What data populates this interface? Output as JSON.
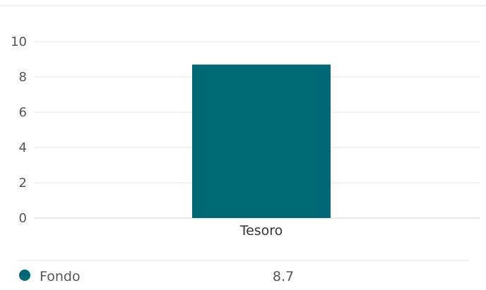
{
  "chart_data": {
    "type": "bar",
    "categories": [
      "Tesoro"
    ],
    "series": [
      {
        "name": "Fondo",
        "values": [
          8.7
        ],
        "color": "#006775"
      }
    ],
    "ylim": [
      0,
      10
    ],
    "yticks": [
      0,
      2,
      4,
      6,
      8,
      10
    ],
    "grid": true,
    "legend": "bottom"
  },
  "legend": {
    "items": [
      {
        "label": "Fondo",
        "value": "8.7",
        "color": "#006775"
      }
    ]
  }
}
